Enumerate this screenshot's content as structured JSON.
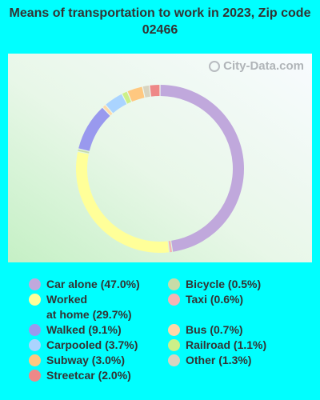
{
  "chart_data": {
    "type": "pie",
    "title": "Means of transportation to work in 2023, Zip code 02466",
    "slices": [
      {
        "label": "Car alone",
        "value": 47.0,
        "display": "Car alone (47.0%)",
        "color": "#c0a8dc"
      },
      {
        "label": "Worked at home",
        "value": 29.7,
        "display": "Worked\nat home (29.7%)",
        "color": "#ffff99"
      },
      {
        "label": "Walked",
        "value": 9.1,
        "display": "Walked (9.1%)",
        "color": "#9999ee"
      },
      {
        "label": "Carpooled",
        "value": 3.7,
        "display": "Carpooled (3.7%)",
        "color": "#aad4ff"
      },
      {
        "label": "Subway",
        "value": 3.0,
        "display": "Subway (3.0%)",
        "color": "#ffc880"
      },
      {
        "label": "Streetcar",
        "value": 2.0,
        "display": "Streetcar (2.0%)",
        "color": "#ee8888"
      },
      {
        "label": "Bicycle",
        "value": 0.5,
        "display": "Bicycle (0.5%)",
        "color": "#c8dca8"
      },
      {
        "label": "Taxi",
        "value": 0.6,
        "display": "Taxi (0.6%)",
        "color": "#f4b4b4"
      },
      {
        "label": "Bus",
        "value": 0.7,
        "display": "Bus (0.7%)",
        "color": "#ffd8a8"
      },
      {
        "label": "Railroad",
        "value": 1.1,
        "display": "Railroad (1.1%)",
        "color": "#ccf088"
      },
      {
        "label": "Other",
        "value": 1.3,
        "display": "Other (1.3%)",
        "color": "#d8d4c0"
      }
    ],
    "donut_order": [
      "Car alone",
      "Taxi",
      "Worked at home",
      "Bicycle",
      "Walked",
      "Bus",
      "Carpooled",
      "Railroad",
      "Subway",
      "Other",
      "Streetcar"
    ]
  },
  "watermark": "City-Data.com"
}
